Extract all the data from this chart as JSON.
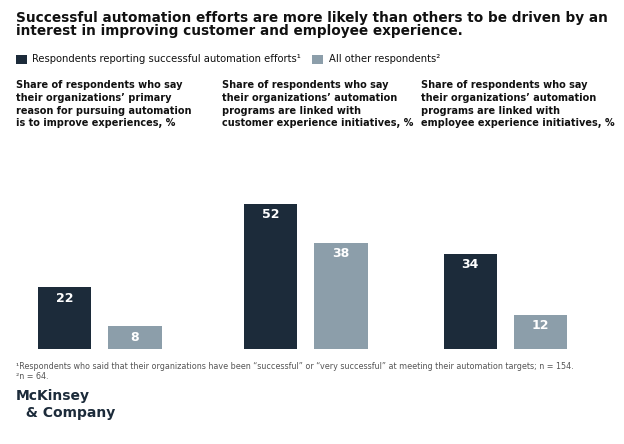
{
  "title_line1": "Successful automation efforts are more likely than others to be driven by an",
  "title_line2": "interest in improving customer and employee experience.",
  "legend": [
    {
      "label": "Respondents reporting successful automation efforts¹",
      "color": "#1c2b3a"
    },
    {
      "label": "All other respondents²",
      "color": "#8c9eaa"
    }
  ],
  "groups": [
    {
      "subtitle": "Share of respondents who say\ntheir organizations’ primary\nreason for pursuing automation\nis to improve experiences, %",
      "values": [
        22,
        8
      ],
      "colors": [
        "#1c2b3a",
        "#8c9eaa"
      ]
    },
    {
      "subtitle": "Share of respondents who say\ntheir organizations’ automation\nprograms are linked with\ncustomer experience initiatives, %",
      "values": [
        52,
        38
      ],
      "colors": [
        "#1c2b3a",
        "#8c9eaa"
      ]
    },
    {
      "subtitle": "Share of respondents who say\ntheir organizations’ automation\nprograms are linked with\nemployee experience initiatives, %",
      "values": [
        34,
        12
      ],
      "colors": [
        "#1c2b3a",
        "#8c9eaa"
      ]
    }
  ],
  "footnote1": "¹Respondents who said that their organizations have been “successful” or “very successful” at meeting their automation targets; n = 154.",
  "footnote2": "²n = 64.",
  "mckinsey_line1": "McKinsey",
  "mckinsey_line2": "  & Company",
  "background_color": "#ffffff",
  "ylim": [
    0,
    60
  ],
  "dark_color": "#1c2b3a",
  "gray_color": "#8c9eaa"
}
